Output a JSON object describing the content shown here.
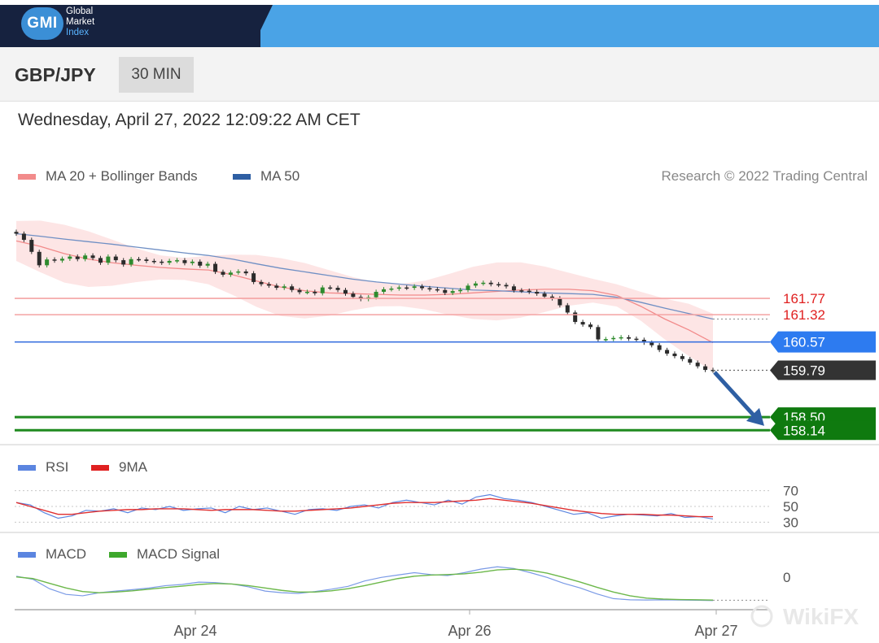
{
  "header": {
    "logo_text": "GMI",
    "brand_lines": [
      "Global",
      "Market",
      "Index"
    ]
  },
  "instrument": {
    "symbol": "GBP/JPY",
    "timeframe": "30 MIN"
  },
  "datetime": "Wednesday, April 27, 2022 12:09:22 AM CET",
  "legend_main": [
    {
      "label": "MA 20 + Bollinger Bands",
      "color": "#f28b8b"
    },
    {
      "label": "MA 50",
      "color": "#2e5fa3"
    }
  ],
  "copyright": "Research © 2022 Trading Central",
  "watermark": "WikiFX",
  "colors": {
    "resistance": "#f4a3a3",
    "pivot": "#3d73e0",
    "support": "#1f8a1f",
    "up_candle": "#2e8b2e",
    "down_candle": "#2b2b2b",
    "arrow": "#2e5fa3"
  },
  "chart_data": [
    {
      "type": "line",
      "name": "price",
      "x_labels": [
        "Apr 24",
        "Apr 26",
        "Apr 27"
      ],
      "ylim": [
        157.9,
        164.5
      ],
      "close": [
        163.55,
        163.38,
        163.05,
        162.68,
        162.84,
        162.81,
        162.86,
        162.92,
        162.85,
        162.95,
        162.88,
        162.75,
        162.92,
        162.82,
        162.7,
        162.85,
        162.84,
        162.8,
        162.78,
        162.75,
        162.8,
        162.82,
        162.74,
        162.78,
        162.67,
        162.72,
        162.5,
        162.42,
        162.48,
        162.51,
        162.46,
        162.22,
        162.16,
        162.12,
        162.06,
        162.1,
        162.0,
        161.94,
        161.95,
        161.91,
        162.07,
        162.06,
        162.0,
        161.9,
        161.81,
        161.75,
        161.8,
        161.95,
        162.02,
        162.04,
        162.07,
        162.06,
        162.1,
        162.05,
        162.02,
        162.0,
        161.92,
        161.97,
        162.0,
        162.12,
        162.18,
        162.2,
        162.16,
        162.14,
        162.1,
        161.99,
        161.98,
        161.95,
        161.9,
        161.82,
        161.77,
        161.58,
        161.38,
        161.12,
        161.05,
        160.98,
        160.64,
        160.65,
        160.68,
        160.7,
        160.66,
        160.63,
        160.55,
        160.48,
        160.35,
        160.25,
        160.18,
        160.1,
        160.0,
        159.9,
        159.8,
        159.78
      ],
      "ma20": [
        163.35,
        163.2,
        163.0,
        162.85,
        162.75,
        162.68,
        162.62,
        162.58,
        162.55,
        162.42,
        162.25,
        162.08,
        161.98,
        161.92,
        161.9,
        161.88,
        161.86,
        161.86,
        161.88,
        161.92,
        161.96,
        162.0,
        162.02,
        162.02,
        161.98,
        161.85,
        161.55,
        161.2,
        160.9,
        160.55
      ],
      "ma50": [
        163.55,
        163.48,
        163.4,
        163.33,
        163.26,
        163.18,
        163.1,
        163.02,
        162.95,
        162.85,
        162.72,
        162.6,
        162.5,
        162.4,
        162.3,
        162.22,
        162.16,
        162.1,
        162.05,
        162.0,
        161.98,
        161.95,
        161.92,
        161.9,
        161.88,
        161.8,
        161.66,
        161.5,
        161.35,
        161.2
      ]
    },
    {
      "type": "line",
      "name": "levels",
      "levels": [
        {
          "label": "161.77",
          "value": 161.77,
          "kind": "resistance"
        },
        {
          "label": "161.32",
          "value": 161.32,
          "kind": "resistance"
        },
        {
          "label": "160.57",
          "value": 160.57,
          "kind": "pivot"
        },
        {
          "label": "159.79",
          "value": 159.79,
          "kind": "last"
        },
        {
          "label": "158.50",
          "value": 158.5,
          "kind": "support"
        },
        {
          "label": "158.14",
          "value": 158.14,
          "kind": "support"
        }
      ]
    },
    {
      "type": "line",
      "name": "rsi",
      "legend": [
        {
          "label": "RSI",
          "color": "#5b85e0"
        },
        {
          "label": "9MA",
          "color": "#e02020"
        }
      ],
      "ylim": [
        20,
        80
      ],
      "tick_labels": [
        "70",
        "50",
        "30"
      ],
      "rsi": [
        55,
        52,
        42,
        35,
        38,
        45,
        44,
        47,
        42,
        48,
        46,
        50,
        45,
        47,
        48,
        42,
        50,
        46,
        48,
        44,
        40,
        46,
        47,
        45,
        50,
        52,
        48,
        55,
        58,
        55,
        52,
        58,
        53,
        62,
        65,
        60,
        58,
        55,
        50,
        45,
        40,
        42,
        35,
        38,
        40,
        39,
        38,
        41,
        36,
        37,
        34
      ],
      "ma9": [
        55,
        50,
        45,
        40,
        40,
        42,
        44,
        45,
        46,
        46,
        47,
        47,
        47,
        46,
        45,
        46,
        46,
        46,
        45,
        44,
        44,
        45,
        46,
        47,
        48,
        50,
        52,
        54,
        55,
        55,
        55,
        56,
        57,
        58,
        60,
        58,
        56,
        54,
        51,
        48,
        45,
        43,
        41,
        40,
        40,
        40,
        39,
        39,
        38,
        37,
        37
      ]
    },
    {
      "type": "line",
      "name": "macd",
      "legend": [
        {
          "label": "MACD",
          "color": "#5b85e0"
        },
        {
          "label": "MACD Signal",
          "color": "#3ea82c"
        }
      ],
      "ylim": [
        -1.2,
        0.8
      ],
      "tick_labels": [
        "0"
      ],
      "macd": [
        0.15,
        0.02,
        -0.38,
        -0.62,
        -0.68,
        -0.55,
        -0.48,
        -0.42,
        -0.35,
        -0.25,
        -0.2,
        -0.1,
        -0.12,
        -0.18,
        -0.3,
        -0.48,
        -0.55,
        -0.58,
        -0.5,
        -0.4,
        -0.28,
        -0.05,
        0.1,
        0.2,
        0.3,
        0.22,
        0.18,
        0.3,
        0.45,
        0.55,
        0.48,
        0.3,
        0.1,
        -0.15,
        -0.35,
        -0.6,
        -0.8,
        -0.85,
        -0.86,
        -0.85,
        -0.86,
        -0.87,
        -0.88
      ],
      "signal": [
        0.12,
        0.05,
        -0.15,
        -0.35,
        -0.5,
        -0.55,
        -0.52,
        -0.47,
        -0.4,
        -0.33,
        -0.27,
        -0.2,
        -0.16,
        -0.18,
        -0.25,
        -0.35,
        -0.45,
        -0.52,
        -0.52,
        -0.47,
        -0.38,
        -0.25,
        -0.1,
        0.05,
        0.15,
        0.2,
        0.22,
        0.25,
        0.32,
        0.42,
        0.45,
        0.4,
        0.28,
        0.1,
        -0.1,
        -0.32,
        -0.52,
        -0.68,
        -0.78,
        -0.82,
        -0.84,
        -0.85,
        -0.86
      ]
    }
  ]
}
